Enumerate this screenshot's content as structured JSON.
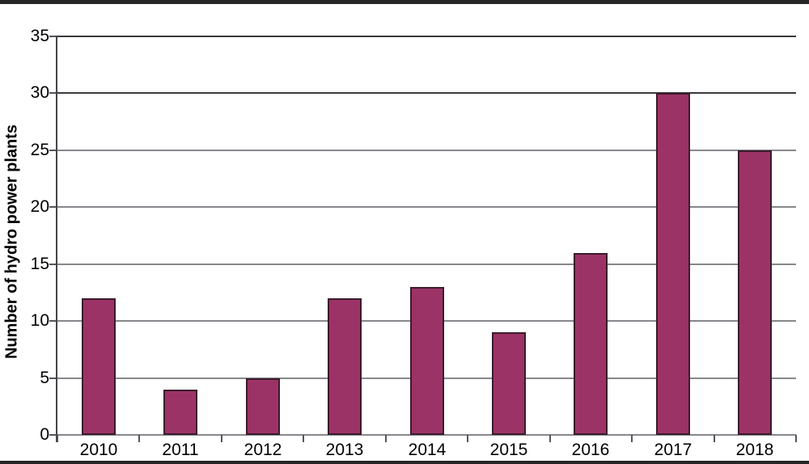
{
  "page": {
    "background": "#ffffff",
    "top_strip_color": "#262626",
    "bottom_strip_color": "#262626"
  },
  "chart_data": {
    "type": "bar",
    "title": "",
    "categories": [
      "2010",
      "2011",
      "2012",
      "2013",
      "2014",
      "2015",
      "2016",
      "2017",
      "2018"
    ],
    "values": [
      12,
      4,
      5,
      12,
      13,
      9,
      16,
      30,
      25
    ],
    "xlabel": "",
    "ylabel": "Number of hydro power plants",
    "ylim": [
      0,
      35
    ],
    "yticks": [
      0,
      5,
      10,
      15,
      20,
      25,
      30,
      35
    ],
    "grid": true,
    "legend": "none",
    "colors": {
      "bar_fill": "#9c3366",
      "bar_border": "#3a1c2c",
      "gridline": "#87878c",
      "gridline_dark": "#3a3a3e",
      "axis": "#45454a",
      "tick": "#55555a",
      "text": "#000000"
    }
  }
}
